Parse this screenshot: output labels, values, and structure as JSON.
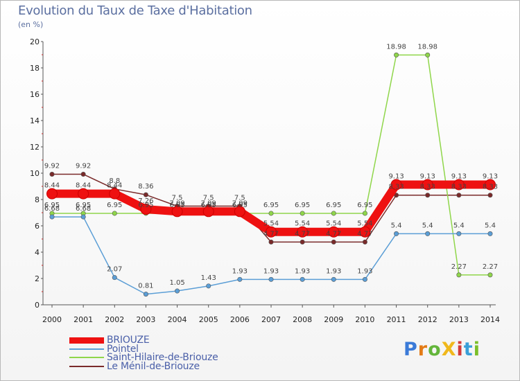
{
  "header": {
    "title": "Evolution du Taux de Taxe d'Habitation",
    "subtitle": "(en %)"
  },
  "logo": {
    "text": "ProXiti",
    "letter_colors": [
      "#3a7ad8",
      "#e37b16",
      "#63b53a",
      "#f0b81c",
      "#d23a3a",
      "#3a9fd8",
      "#7bbf2a"
    ]
  },
  "chart_data": {
    "type": "line",
    "title": "Evolution du Taux de Taxe d'Habitation",
    "ylabel": "(en %)",
    "xlabel": "",
    "ylim": [
      0,
      20
    ],
    "yticks": [
      0,
      2,
      4,
      6,
      8,
      10,
      12,
      14,
      16,
      18,
      20
    ],
    "grid": false,
    "legend_position": "bottom-left",
    "x": [
      "2000",
      "2001",
      "2002",
      "2003",
      "2004",
      "2005",
      "2006",
      "2007",
      "2008",
      "2009",
      "2010",
      "2011",
      "2012",
      "2013",
      "2014"
    ],
    "series": [
      {
        "name": "BRIOUZE",
        "color": "#ee1111",
        "values": [
          8.44,
          8.44,
          8.44,
          7.26,
          7.09,
          7.09,
          7.09,
          5.54,
          5.54,
          5.54,
          5.54,
          9.13,
          9.13,
          9.13,
          9.13
        ],
        "labels": [
          "8.44",
          "8.44",
          "8.44",
          "7.26",
          "7.09",
          "7.09",
          "7.09",
          "5.54",
          "5.54",
          "5.54",
          "5.54",
          "9.13",
          "9.13",
          "9.13",
          "9.13"
        ]
      },
      {
        "name": "Pointel",
        "color": "#5b9ed6",
        "values": [
          6.68,
          6.68,
          2.07,
          0.81,
          1.05,
          1.43,
          1.93,
          1.93,
          1.93,
          1.93,
          1.93,
          5.4,
          5.4,
          5.4,
          5.4
        ],
        "labels": [
          "6.68",
          "6.68",
          "2.07",
          "0.81",
          "1.05",
          "1.43",
          "1.93",
          "1.93",
          "1.93",
          "1.93",
          "1.93",
          "5.4",
          "5.4",
          "5.4",
          "5.4"
        ]
      },
      {
        "name": "Saint-Hilaire-de-Briouze",
        "color": "#8fd64a",
        "values": [
          6.95,
          6.95,
          6.95,
          6.95,
          6.95,
          6.95,
          6.95,
          6.95,
          6.95,
          6.95,
          6.95,
          18.98,
          18.98,
          2.27,
          2.27
        ],
        "labels": [
          "6.95",
          "6.95",
          "6.95",
          "6.95",
          "6.95",
          "6.95",
          "6.95",
          "6.95",
          "6.95",
          "6.95",
          "6.95",
          "18.98",
          "18.98",
          "2.27",
          "2.27"
        ]
      },
      {
        "name": "Le Ménil-de-Briouze",
        "color": "#7a2a2a",
        "values": [
          9.92,
          9.92,
          8.8,
          8.36,
          7.5,
          7.5,
          7.5,
          4.77,
          4.77,
          4.77,
          4.77,
          8.33,
          8.33,
          8.33,
          8.33
        ],
        "labels": [
          "9.92",
          "9.92",
          "8.8",
          "8.36",
          "7.5",
          "7.5",
          "7.5",
          "4.77",
          "4.77",
          "4.77",
          "4.77",
          "8.33",
          "8.33",
          "8.33",
          "8.33"
        ]
      }
    ]
  }
}
